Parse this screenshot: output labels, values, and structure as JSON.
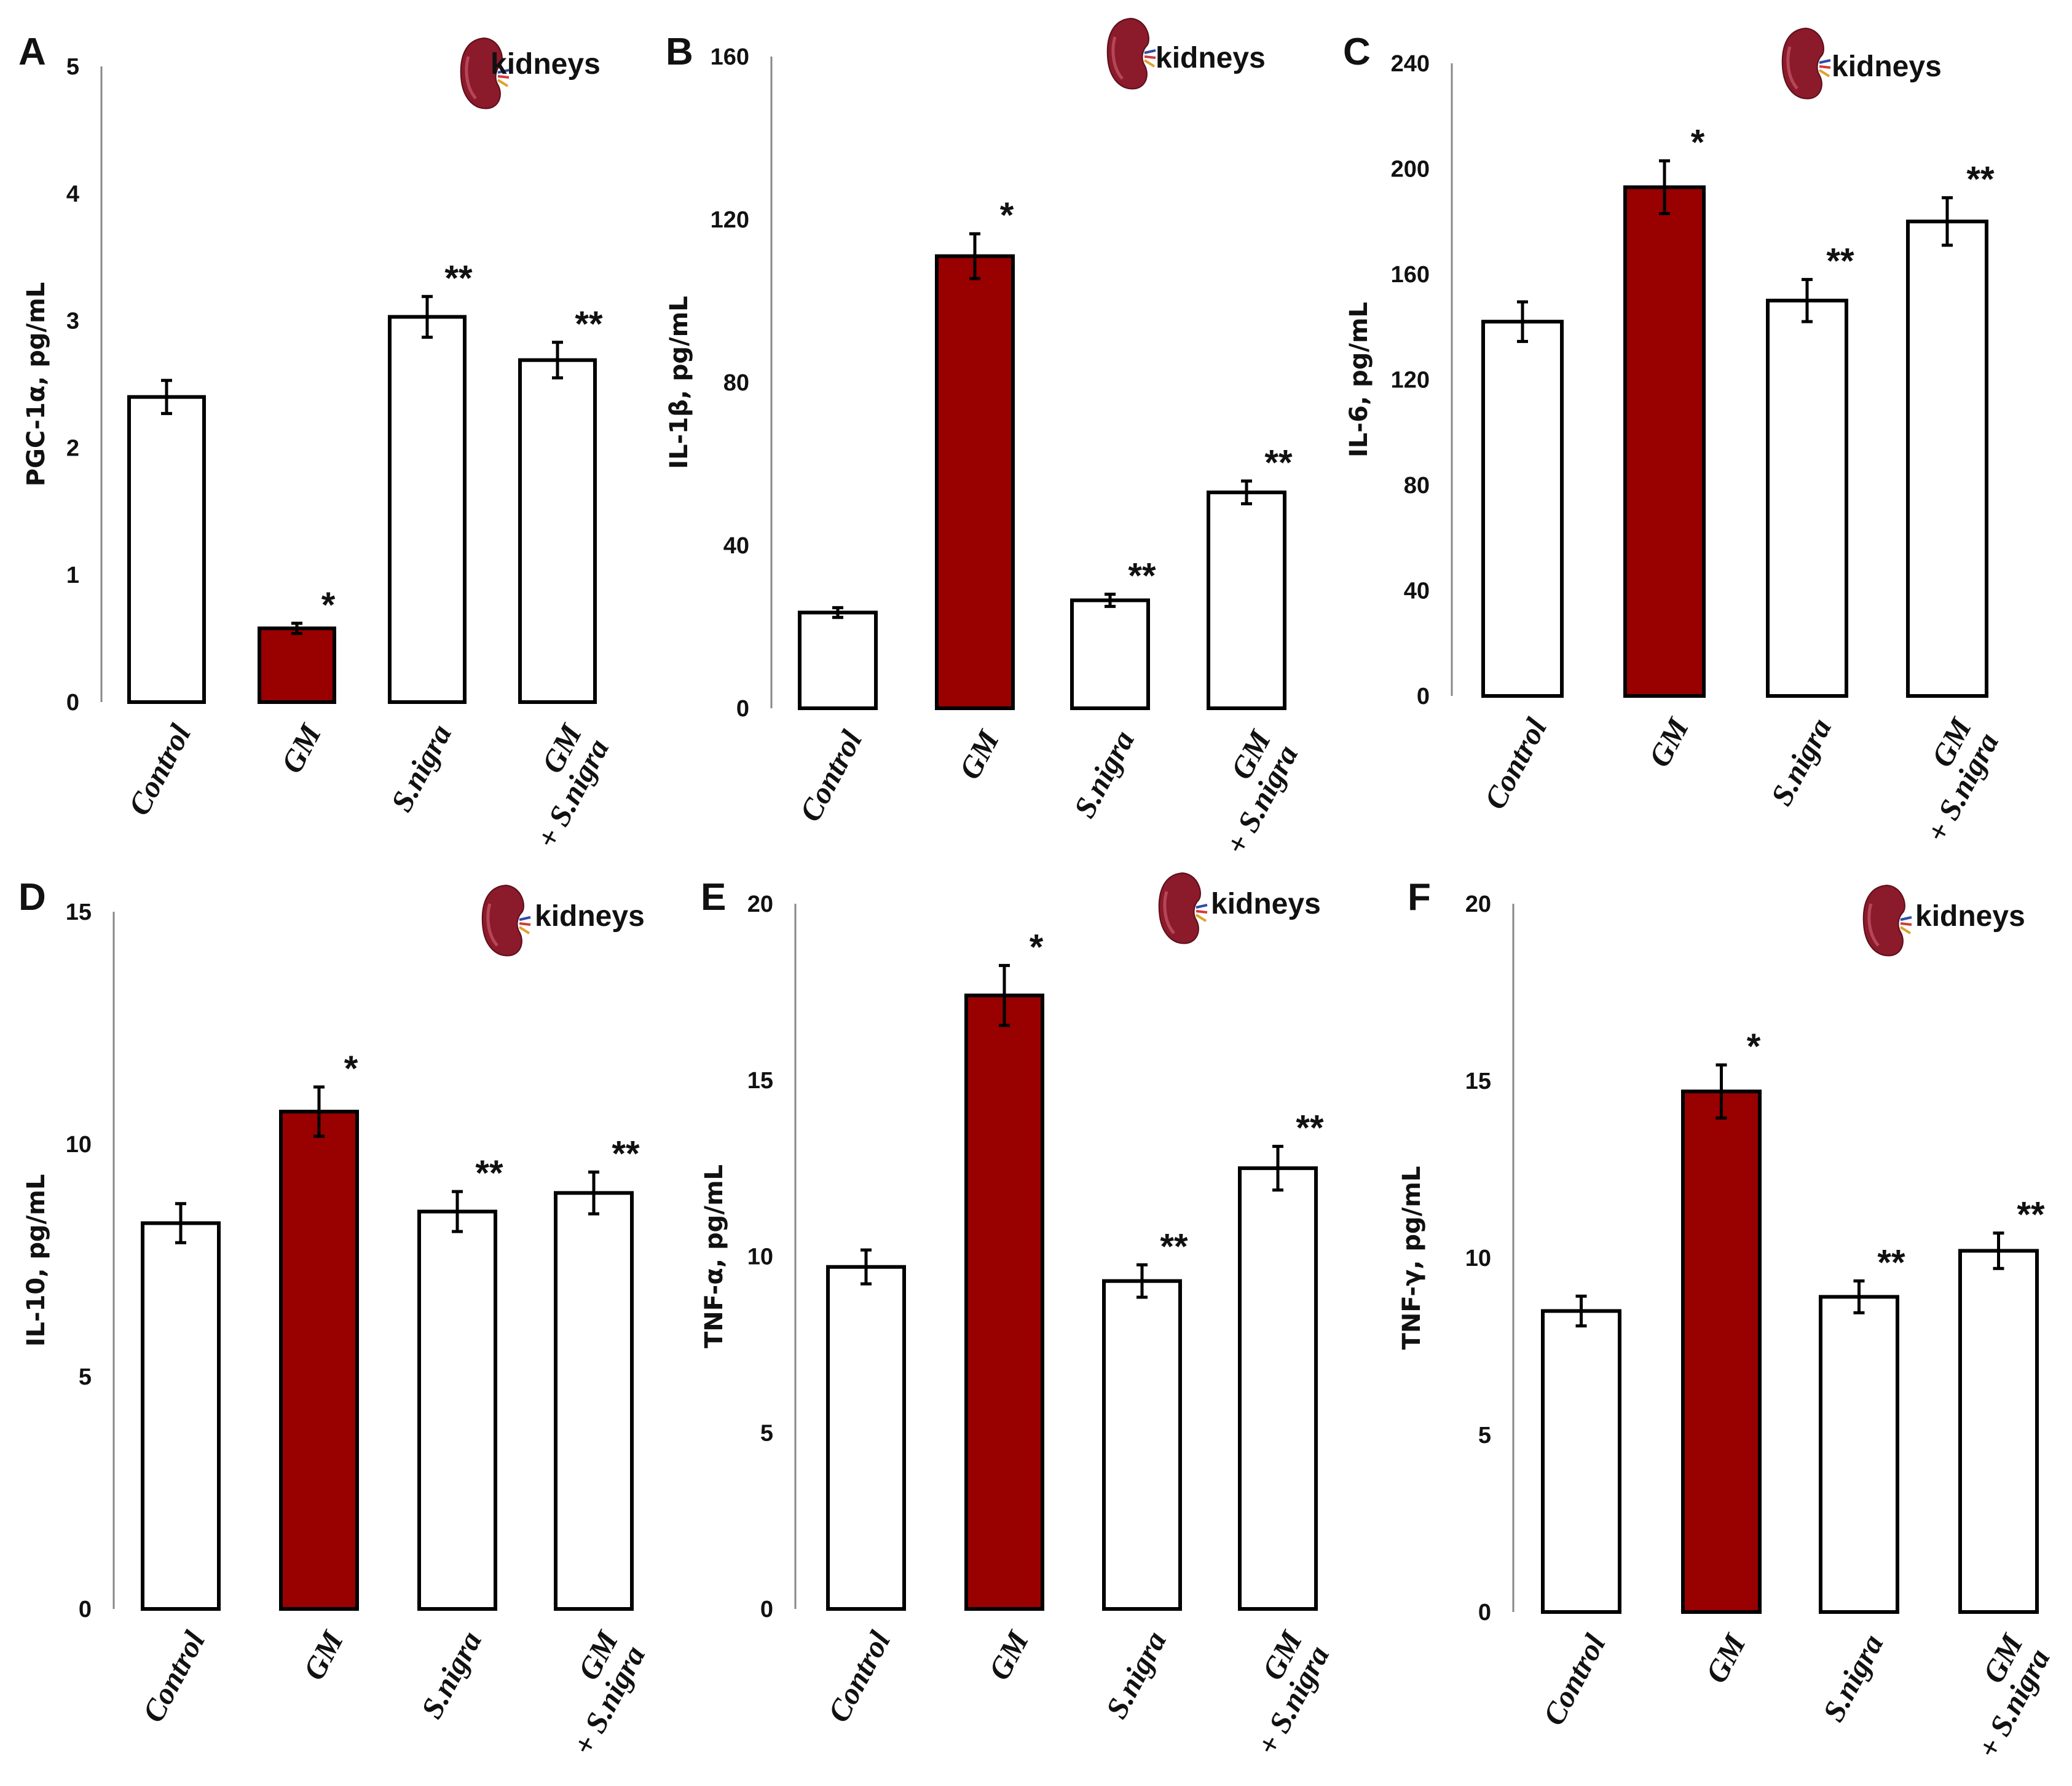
{
  "colors": {
    "highlight": "#990000",
    "bar_default": "#ffffff",
    "stroke": "#000000",
    "axis": "#888888"
  },
  "chart_data": [
    {
      "panel": "A",
      "type": "bar",
      "ylabel": "PGC-1α, pg/mL",
      "organ": "kidneys",
      "organ_icon": "kidney-icon",
      "ylim": [
        0,
        5
      ],
      "yticks": [
        0,
        1,
        2,
        3,
        4,
        5
      ],
      "categories": [
        [
          "Control"
        ],
        [
          "GM"
        ],
        [
          "S.nigra"
        ],
        [
          "GM",
          "+ S.nigra"
        ]
      ],
      "values": [
        2.4,
        0.58,
        3.03,
        2.69
      ],
      "errors": [
        0.13,
        0.04,
        0.16,
        0.14
      ],
      "significance": [
        "",
        "*",
        "**",
        "**"
      ],
      "highlight": [
        false,
        true,
        false,
        false
      ]
    },
    {
      "panel": "B",
      "type": "bar",
      "ylabel": "IL-1β, pg/mL",
      "organ": "kidneys",
      "organ_icon": "kidney-icon",
      "ylim": [
        0,
        160
      ],
      "yticks": [
        0,
        40,
        80,
        120,
        160
      ],
      "categories": [
        [
          "Control"
        ],
        [
          "GM"
        ],
        [
          "S.nigra"
        ],
        [
          "GM",
          "+ S.nigra"
        ]
      ],
      "values": [
        23.5,
        111,
        26.5,
        53
      ],
      "errors": [
        1.2,
        5.5,
        1.5,
        2.8
      ],
      "significance": [
        "",
        "*",
        "**",
        "**"
      ],
      "highlight": [
        false,
        true,
        false,
        false
      ]
    },
    {
      "panel": "C",
      "type": "bar",
      "ylabel": "IL-6, pg/mL",
      "organ": "kidneys",
      "organ_icon": "kidney-icon",
      "ylim": [
        0,
        240
      ],
      "yticks": [
        0,
        40,
        80,
        120,
        160,
        200,
        240
      ],
      "categories": [
        [
          "Control"
        ],
        [
          "GM"
        ],
        [
          "S.nigra"
        ],
        [
          "GM",
          "+ S.nigra"
        ]
      ],
      "values": [
        142,
        193,
        150,
        180
      ],
      "errors": [
        7.5,
        10,
        8,
        9
      ],
      "significance": [
        "",
        "*",
        "**",
        "**"
      ],
      "highlight": [
        false,
        true,
        false,
        false
      ]
    },
    {
      "panel": "D",
      "type": "bar",
      "ylabel": "IL-10, pg/mL",
      "organ": "kidneys",
      "organ_icon": "kidney-icon",
      "ylim": [
        0,
        15
      ],
      "yticks": [
        0,
        5,
        10,
        15
      ],
      "categories": [
        [
          "Control"
        ],
        [
          "GM"
        ],
        [
          "S.nigra"
        ],
        [
          "GM",
          "+ S.nigra"
        ]
      ],
      "values": [
        8.3,
        10.7,
        8.55,
        8.95
      ],
      "errors": [
        0.42,
        0.53,
        0.43,
        0.45
      ],
      "significance": [
        "",
        "*",
        "**",
        "**"
      ],
      "highlight": [
        false,
        true,
        false,
        false
      ]
    },
    {
      "panel": "E",
      "type": "bar",
      "ylabel": "TNF-α, pg/mL",
      "organ": "kidneys",
      "organ_icon": "kidney-icon",
      "ylim": [
        0,
        20
      ],
      "yticks": [
        0,
        5,
        10,
        15,
        20
      ],
      "categories": [
        [
          "Control"
        ],
        [
          "GM"
        ],
        [
          "S.nigra"
        ],
        [
          "GM",
          "+ S.nigra"
        ]
      ],
      "values": [
        9.7,
        17.4,
        9.3,
        12.5
      ],
      "errors": [
        0.48,
        0.85,
        0.46,
        0.62
      ],
      "significance": [
        "",
        "*",
        "**",
        "**"
      ],
      "highlight": [
        false,
        true,
        false,
        false
      ]
    },
    {
      "panel": "F",
      "type": "bar",
      "ylabel": "TNF-γ, pg/mL",
      "organ": "kidneys",
      "organ_icon": "kidney-icon",
      "ylim": [
        0,
        20
      ],
      "yticks": [
        0,
        5,
        10,
        15,
        20
      ],
      "categories": [
        [
          "Control"
        ],
        [
          "GM"
        ],
        [
          "S.nigra"
        ],
        [
          "GM",
          "+ S.nigra"
        ]
      ],
      "values": [
        8.5,
        14.7,
        8.9,
        10.2
      ],
      "errors": [
        0.42,
        0.75,
        0.45,
        0.5
      ],
      "significance": [
        "",
        "*",
        "**",
        "**"
      ],
      "highlight": [
        false,
        true,
        false,
        false
      ]
    }
  ]
}
